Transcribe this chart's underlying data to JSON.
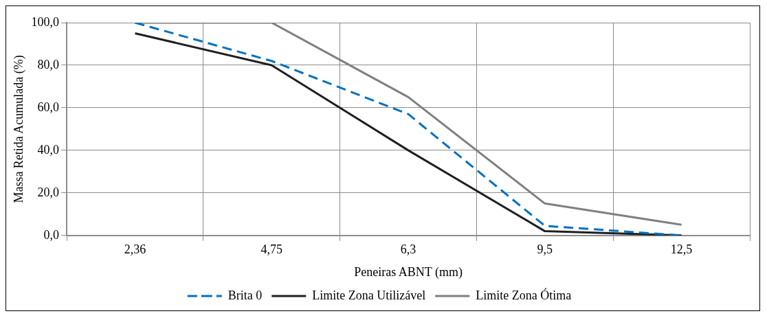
{
  "chart_data": {
    "type": "line",
    "xlabel": "Peneiras ABNT (mm)",
    "ylabel": "Massa Retida Acumulada (%)",
    "categories": [
      "2,36",
      "4,75",
      "6,3",
      "9,5",
      "12,5"
    ],
    "series": [
      {
        "name": "Brita 0",
        "color": "#0070c0",
        "values": [
          100,
          82,
          57,
          4.5,
          0
        ],
        "line_style": "dashed"
      },
      {
        "name": "Limite Zona Utilizável",
        "color": "#1f1f1f",
        "values": [
          95,
          80,
          40,
          2,
          0
        ],
        "line_style": "solid"
      },
      {
        "name": "Limite Zona Ótima",
        "color": "#7f7f7f",
        "values": [
          100,
          100,
          65,
          15,
          5
        ],
        "line_style": "solid"
      }
    ],
    "ylim": [
      0,
      100
    ],
    "yticks": [
      {
        "value": 0,
        "label": "0,0"
      },
      {
        "value": 20,
        "label": "20,0"
      },
      {
        "value": 40,
        "label": "40,0"
      },
      {
        "value": 60,
        "label": "60,0"
      },
      {
        "value": 80,
        "label": "80,0"
      },
      {
        "value": 100,
        "label": "100,0"
      }
    ],
    "grid": true,
    "legend": "bottom",
    "marker": "none"
  }
}
